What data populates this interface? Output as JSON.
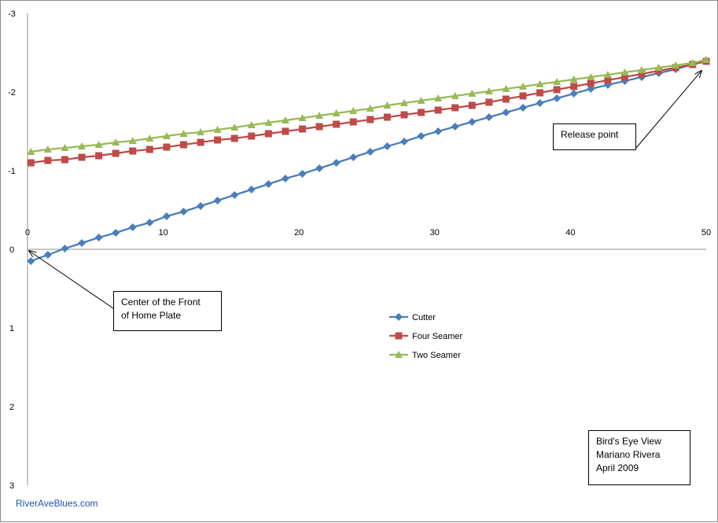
{
  "chart_data": {
    "type": "line",
    "title": "",
    "xlabel": "",
    "ylabel": "",
    "xlim": [
      0,
      50
    ],
    "ylim": [
      -3,
      3
    ],
    "y_axis_inverted": true,
    "x_ticks": [
      "0",
      "10",
      "20",
      "30",
      "40",
      "50"
    ],
    "x_tick_values": [
      0,
      10,
      20,
      30,
      40,
      50
    ],
    "y_ticks": [
      "-3",
      "-2",
      "-1",
      "0",
      "1",
      "2",
      "3"
    ],
    "y_tick_values": [
      -3,
      -2,
      -1,
      0,
      1,
      2,
      3
    ],
    "grid": false,
    "legend_position": "center",
    "series": [
      {
        "name": "Cutter",
        "color": "#4a7ebb",
        "marker": "diamond",
        "x": [
          0.25,
          1.5,
          2.75,
          4,
          5.25,
          6.5,
          7.75,
          9,
          10.25,
          11.5,
          12.75,
          14,
          15.25,
          16.5,
          17.75,
          19,
          20.25,
          21.5,
          22.75,
          24,
          25.25,
          26.5,
          27.75,
          29,
          30.25,
          31.5,
          32.75,
          34,
          35.25,
          36.5,
          37.75,
          39,
          40.25,
          41.5,
          42.75,
          44,
          45.25,
          46.5,
          47.75,
          49,
          50
        ],
        "y": [
          0.15,
          0.07,
          -0.01,
          -0.08,
          -0.15,
          -0.21,
          -0.28,
          -0.34,
          -0.42,
          -0.48,
          -0.55,
          -0.62,
          -0.69,
          -0.76,
          -0.83,
          -0.9,
          -0.96,
          -1.03,
          -1.1,
          -1.17,
          -1.24,
          -1.31,
          -1.37,
          -1.44,
          -1.5,
          -1.56,
          -1.62,
          -1.68,
          -1.74,
          -1.8,
          -1.86,
          -1.92,
          -1.98,
          -2.04,
          -2.09,
          -2.14,
          -2.19,
          -2.24,
          -2.29,
          -2.35,
          -2.4
        ]
      },
      {
        "name": "Four Seamer",
        "color": "#be4b48",
        "marker": "square",
        "x": [
          0.25,
          1.5,
          2.75,
          4,
          5.25,
          6.5,
          7.75,
          9,
          10.25,
          11.5,
          12.75,
          14,
          15.25,
          16.5,
          17.75,
          19,
          20.25,
          21.5,
          22.75,
          24,
          25.25,
          26.5,
          27.75,
          29,
          30.25,
          31.5,
          32.75,
          34,
          35.25,
          36.5,
          37.75,
          39,
          40.25,
          41.5,
          42.75,
          44,
          45.25,
          46.5,
          47.75,
          49,
          50
        ],
        "y": [
          -1.1,
          -1.13,
          -1.14,
          -1.17,
          -1.19,
          -1.22,
          -1.25,
          -1.27,
          -1.3,
          -1.33,
          -1.36,
          -1.39,
          -1.41,
          -1.44,
          -1.47,
          -1.5,
          -1.53,
          -1.56,
          -1.59,
          -1.62,
          -1.65,
          -1.68,
          -1.71,
          -1.74,
          -1.77,
          -1.8,
          -1.83,
          -1.87,
          -1.91,
          -1.95,
          -1.99,
          -2.03,
          -2.07,
          -2.11,
          -2.15,
          -2.19,
          -2.23,
          -2.27,
          -2.31,
          -2.35,
          -2.39
        ]
      },
      {
        "name": "Two Seamer",
        "color": "#98b954",
        "marker": "triangle",
        "x": [
          0.25,
          1.5,
          2.75,
          4,
          5.25,
          6.5,
          7.75,
          9,
          10.25,
          11.5,
          12.75,
          14,
          15.25,
          16.5,
          17.75,
          19,
          20.25,
          21.5,
          22.75,
          24,
          25.25,
          26.5,
          27.75,
          29,
          30.25,
          31.5,
          32.75,
          34,
          35.25,
          36.5,
          37.75,
          39,
          40.25,
          41.5,
          42.75,
          44,
          45.25,
          46.5,
          47.75,
          49,
          50
        ],
        "y": [
          -1.24,
          -1.27,
          -1.29,
          -1.31,
          -1.33,
          -1.36,
          -1.38,
          -1.41,
          -1.44,
          -1.47,
          -1.49,
          -1.52,
          -1.55,
          -1.58,
          -1.61,
          -1.64,
          -1.67,
          -1.7,
          -1.73,
          -1.76,
          -1.79,
          -1.83,
          -1.86,
          -1.89,
          -1.92,
          -1.95,
          -1.98,
          -2.01,
          -2.04,
          -2.07,
          -2.1,
          -2.13,
          -2.16,
          -2.19,
          -2.22,
          -2.25,
          -2.28,
          -2.31,
          -2.34,
          -2.37,
          -2.41
        ]
      }
    ],
    "annotations": {
      "release": {
        "lines": [
          "Release point"
        ],
        "target": [
          50,
          -2.31
        ]
      },
      "center": {
        "lines": [
          "Center of the Front",
          "of Home Plate"
        ],
        "target": [
          0,
          0
        ]
      },
      "info": {
        "lines": [
          "Bird's Eye View",
          "Mariano Rivera",
          "April 2009"
        ]
      }
    }
  },
  "footer": {
    "credit": "RiverAveBlues.com"
  }
}
